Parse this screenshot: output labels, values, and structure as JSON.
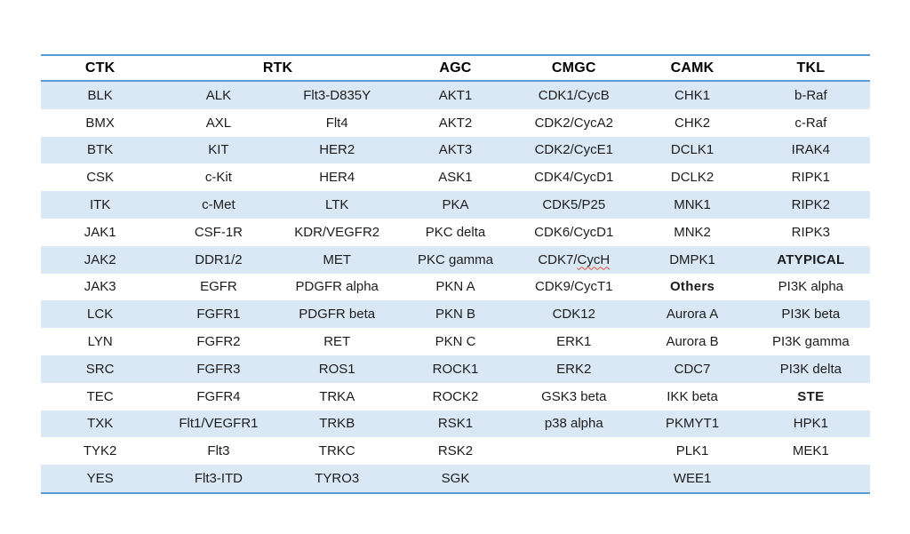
{
  "colors": {
    "border": "#5B9BD5",
    "stripe": "#DAE8F6",
    "text": "#1c1c1c",
    "header_text": "#000000",
    "spellcheck_underline": "#e8503a"
  },
  "table": {
    "headers": [
      {
        "id": "ctk",
        "label": "CTK",
        "span": 1
      },
      {
        "id": "rtk",
        "label": "RTK",
        "span": 2
      },
      {
        "id": "agc",
        "label": "AGC",
        "span": 1
      },
      {
        "id": "cmgc",
        "label": "CMGC",
        "span": 1
      },
      {
        "id": "camk",
        "label": "CAMK",
        "span": 1
      },
      {
        "id": "tkl",
        "label": "TKL",
        "span": 1
      }
    ],
    "rows": [
      [
        "BLK",
        "ALK",
        "Flt3-D835Y",
        "AKT1",
        "CDK1/CycB",
        "CHK1",
        "b-Raf"
      ],
      [
        "BMX",
        "AXL",
        "Flt4",
        "AKT2",
        "CDK2/CycA2",
        "CHK2",
        "c-Raf"
      ],
      [
        "BTK",
        "KIT",
        "HER2",
        "AKT3",
        "CDK2/CycE1",
        "DCLK1",
        "IRAK4"
      ],
      [
        "CSK",
        "c-Kit",
        "HER4",
        "ASK1",
        "CDK4/CycD1",
        "DCLK2",
        "RIPK1"
      ],
      [
        "ITK",
        "c-Met",
        "LTK",
        "PKA",
        "CDK5/P25",
        "MNK1",
        "RIPK2"
      ],
      [
        "JAK1",
        "CSF-1R",
        "KDR/VEGFR2",
        "PKC delta",
        "CDK6/CycD1",
        "MNK2",
        "RIPK3"
      ],
      [
        "JAK2",
        "DDR1/2",
        "MET",
        "PKC gamma",
        {
          "text": "CDK7/CycH",
          "spellcheck_part": "CycH"
        },
        "DMPK1",
        {
          "text": "ATYPICAL",
          "bold": true
        }
      ],
      [
        "JAK3",
        "EGFR",
        "PDGFR alpha",
        "PKN A",
        "CDK9/CycT1",
        {
          "text": "Others",
          "bold": true
        },
        "PI3K alpha"
      ],
      [
        "LCK",
        "FGFR1",
        "PDGFR beta",
        "PKN B",
        "CDK12",
        "Aurora A",
        "PI3K beta"
      ],
      [
        "LYN",
        "FGFR2",
        "RET",
        "PKN C",
        "ERK1",
        "Aurora B",
        "PI3K gamma"
      ],
      [
        "SRC",
        "FGFR3",
        "ROS1",
        "ROCK1",
        "ERK2",
        "CDC7",
        "PI3K delta"
      ],
      [
        "TEC",
        "FGFR4",
        "TRKA",
        "ROCK2",
        "GSK3 beta",
        "IKK beta",
        {
          "text": "STE",
          "bold": true
        }
      ],
      [
        "TXK",
        "Flt1/VEGFR1",
        "TRKB",
        "RSK1",
        "p38 alpha",
        "PKMYT1",
        "HPK1"
      ],
      [
        "TYK2",
        "Flt3",
        "TRKC",
        "RSK2",
        "",
        {
          "text": "PLK1",
          "small": true
        },
        "MEK1"
      ],
      [
        "YES",
        "Flt3-ITD",
        "TYRO3",
        "SGK",
        "",
        "WEE1",
        ""
      ]
    ]
  }
}
